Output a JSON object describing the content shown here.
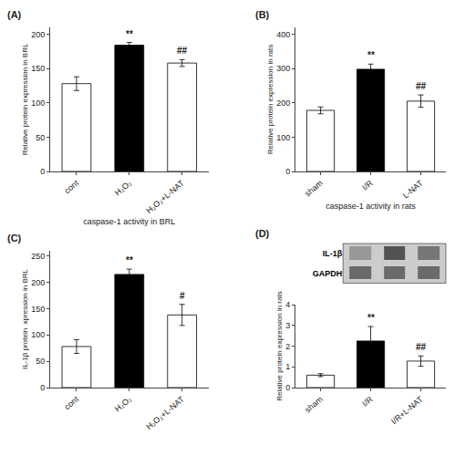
{
  "chart_data": [
    {
      "type": "bar",
      "title": "(A)",
      "categories": [
        "cont",
        "H₂O₂",
        "H₂O₂+L-NAT"
      ],
      "values": [
        128,
        184,
        158
      ],
      "errors": [
        10,
        4,
        5
      ],
      "ylabel": "Relative protein expression in BRL",
      "xlabel": "caspase-1 activity in BRL",
      "ylim": [
        0,
        210
      ],
      "yticks": [
        0,
        50,
        100,
        150,
        200
      ],
      "colors": [
        "white",
        "black",
        "hatch"
      ],
      "annotations": [
        {
          "category": "H₂O₂",
          "text": "**"
        },
        {
          "category": "H₂O₂+L-NAT",
          "text": "##"
        }
      ],
      "grid": false
    },
    {
      "type": "bar",
      "title": "(B)",
      "categories": [
        "sham",
        "I/R",
        "L-NAT"
      ],
      "values": [
        178,
        298,
        205
      ],
      "errors": [
        10,
        15,
        18
      ],
      "ylabel": "Relative protein expression in rats",
      "xlabel": "caspase-1 activity in rats",
      "ylim": [
        0,
        420
      ],
      "yticks": [
        0,
        100,
        200,
        300,
        400
      ],
      "colors": [
        "white",
        "black",
        "hatch"
      ],
      "annotations": [
        {
          "category": "I/R",
          "text": "**"
        },
        {
          "category": "L-NAT",
          "text": "##"
        }
      ],
      "grid": false
    },
    {
      "type": "bar",
      "title": "(C)",
      "categories": [
        "cont",
        "H₂O₂",
        "H₂O₂+L-NAT"
      ],
      "values": [
        78,
        215,
        138
      ],
      "errors": [
        13,
        10,
        20
      ],
      "ylabel": "IL-1β protein  xpression in BRL",
      "ylim": [
        0,
        260
      ],
      "yticks": [
        0,
        50,
        100,
        150,
        200,
        250
      ],
      "colors": [
        "white",
        "black",
        "hatch"
      ],
      "annotations": [
        {
          "category": "H₂O₂",
          "text": "**"
        },
        {
          "category": "H₂O₂+L-NAT",
          "text": "#"
        }
      ],
      "grid": false
    },
    {
      "type": "bar",
      "title": "(D)",
      "categories": [
        "sham",
        "I/R",
        "I/R+L-NAT"
      ],
      "values": [
        0.6,
        2.25,
        1.28
      ],
      "errors": [
        0.07,
        0.7,
        0.25
      ],
      "ylabel": "Relative protein expression in rats",
      "ylim": [
        0,
        4.0
      ],
      "yticks": [
        0,
        1,
        2,
        3,
        4
      ],
      "colors": [
        "white",
        "black",
        "hatch"
      ],
      "annotations": [
        {
          "category": "I/R",
          "text": "**"
        },
        {
          "category": "I/R+L-NAT",
          "text": "##"
        }
      ],
      "grid": false,
      "blot": {
        "type": "heatmap",
        "rows": [
          "IL-1β",
          "GAPDH"
        ],
        "values": [
          [
            0.45,
            0.75,
            0.6
          ],
          [
            0.65,
            0.65,
            0.65
          ]
        ],
        "zlim": [
          0,
          1
        ]
      }
    }
  ]
}
